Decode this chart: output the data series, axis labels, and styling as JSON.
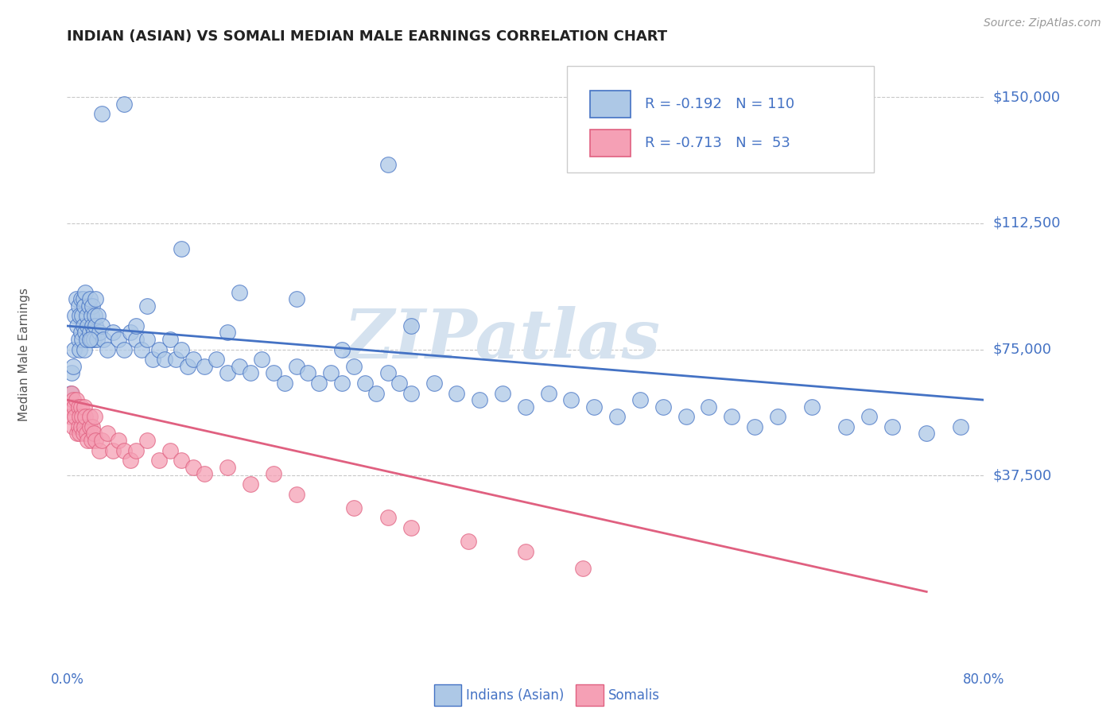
{
  "title": "INDIAN (ASIAN) VS SOMALI MEDIAN MALE EARNINGS CORRELATION CHART",
  "source_text": "Source: ZipAtlas.com",
  "ylabel": "Median Male Earnings",
  "yticks": [
    0,
    37500,
    75000,
    112500,
    150000
  ],
  "ytick_labels": [
    "",
    "$37,500",
    "$75,000",
    "$112,500",
    "$150,000"
  ],
  "xlim": [
    0.0,
    80.0
  ],
  "ylim": [
    -15000,
    162000
  ],
  "label1": "Indians (Asian)",
  "label2": "Somalis",
  "legend_r1": "-0.192",
  "legend_n1": "110",
  "legend_r2": "-0.713",
  "legend_n2": "53",
  "dot_color1": "#adc8e6",
  "dot_color2": "#f5a0b5",
  "line_color1": "#4472c4",
  "line_color2": "#e06080",
  "background_color": "#ffffff",
  "grid_color": "#c8c8c8",
  "title_color": "#222222",
  "axis_color": "#4472c4",
  "watermark": "ZIPatlas",
  "watermark_color": "#d5e2ef",
  "indian_x": [
    0.3,
    0.4,
    0.5,
    0.6,
    0.7,
    0.8,
    0.9,
    1.0,
    1.0,
    1.1,
    1.1,
    1.2,
    1.2,
    1.3,
    1.3,
    1.4,
    1.4,
    1.5,
    1.5,
    1.6,
    1.6,
    1.7,
    1.7,
    1.8,
    1.9,
    2.0,
    2.0,
    2.1,
    2.1,
    2.2,
    2.2,
    2.3,
    2.3,
    2.4,
    2.5,
    2.5,
    2.6,
    2.7,
    2.8,
    3.0,
    3.2,
    3.5,
    4.0,
    4.5,
    5.0,
    5.5,
    6.0,
    6.5,
    7.0,
    7.5,
    8.0,
    8.5,
    9.0,
    9.5,
    10.0,
    10.5,
    11.0,
    12.0,
    13.0,
    14.0,
    15.0,
    16.0,
    17.0,
    18.0,
    19.0,
    20.0,
    21.0,
    22.0,
    23.0,
    24.0,
    25.0,
    26.0,
    27.0,
    28.0,
    29.0,
    30.0,
    32.0,
    34.0,
    36.0,
    38.0,
    40.0,
    42.0,
    44.0,
    46.0,
    48.0,
    50.0,
    52.0,
    54.0,
    56.0,
    58.0,
    60.0,
    62.0,
    65.0,
    68.0,
    70.0,
    72.0,
    75.0,
    78.0,
    5.0,
    28.0,
    20.0,
    3.0,
    2.0,
    10.0,
    15.0,
    6.0,
    7.0,
    14.0,
    24.0,
    30.0
  ],
  "indian_y": [
    62000,
    68000,
    70000,
    75000,
    85000,
    90000,
    82000,
    78000,
    88000,
    75000,
    85000,
    80000,
    90000,
    78000,
    85000,
    82000,
    90000,
    75000,
    88000,
    80000,
    92000,
    85000,
    78000,
    82000,
    88000,
    80000,
    90000,
    78000,
    85000,
    82000,
    88000,
    80000,
    78000,
    85000,
    82000,
    90000,
    78000,
    85000,
    80000,
    82000,
    78000,
    75000,
    80000,
    78000,
    75000,
    80000,
    78000,
    75000,
    78000,
    72000,
    75000,
    72000,
    78000,
    72000,
    75000,
    70000,
    72000,
    70000,
    72000,
    68000,
    70000,
    68000,
    72000,
    68000,
    65000,
    70000,
    68000,
    65000,
    68000,
    65000,
    70000,
    65000,
    62000,
    68000,
    65000,
    62000,
    65000,
    62000,
    60000,
    62000,
    58000,
    62000,
    60000,
    58000,
    55000,
    60000,
    58000,
    55000,
    58000,
    55000,
    52000,
    55000,
    58000,
    52000,
    55000,
    52000,
    50000,
    52000,
    148000,
    130000,
    90000,
    145000,
    78000,
    105000,
    92000,
    82000,
    88000,
    80000,
    75000,
    82000
  ],
  "somali_x": [
    0.2,
    0.3,
    0.4,
    0.5,
    0.5,
    0.6,
    0.7,
    0.8,
    0.9,
    1.0,
    1.0,
    1.1,
    1.1,
    1.2,
    1.2,
    1.3,
    1.4,
    1.5,
    1.5,
    1.6,
    1.7,
    1.8,
    2.0,
    2.0,
    2.1,
    2.2,
    2.3,
    2.4,
    2.5,
    2.8,
    3.0,
    3.5,
    4.0,
    4.5,
    5.0,
    5.5,
    6.0,
    7.0,
    8.0,
    9.0,
    10.0,
    11.0,
    12.0,
    14.0,
    16.0,
    18.0,
    20.0,
    25.0,
    28.0,
    30.0,
    35.0,
    40.0,
    45.0
  ],
  "somali_y": [
    58000,
    55000,
    62000,
    60000,
    52000,
    58000,
    55000,
    60000,
    50000,
    58000,
    52000,
    55000,
    50000,
    58000,
    52000,
    55000,
    50000,
    58000,
    52000,
    55000,
    50000,
    48000,
    52000,
    55000,
    48000,
    52000,
    50000,
    55000,
    48000,
    45000,
    48000,
    50000,
    45000,
    48000,
    45000,
    42000,
    45000,
    48000,
    42000,
    45000,
    42000,
    40000,
    38000,
    40000,
    35000,
    38000,
    32000,
    28000,
    25000,
    22000,
    18000,
    15000,
    10000
  ],
  "trendline1_x": [
    0.0,
    80.0
  ],
  "trendline1_y": [
    82000,
    60000
  ],
  "trendline2_x": [
    0.0,
    75.0
  ],
  "trendline2_y": [
    60000,
    3000
  ]
}
